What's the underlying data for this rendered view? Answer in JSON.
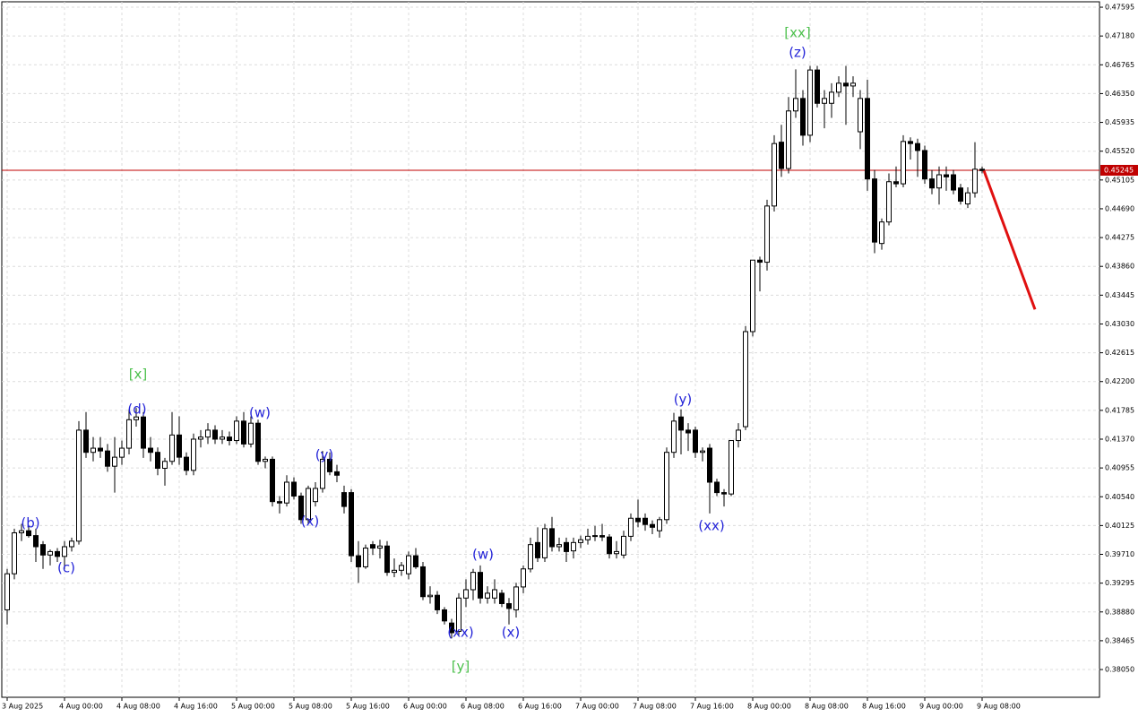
{
  "chart_data": {
    "type": "candlestick",
    "bull_color": "#ffffff",
    "bear_color": "#000000",
    "wick_color": "#000000",
    "grid": true,
    "ylim": [
      0.3765,
      0.47673
    ],
    "yticks": [
      0.47595,
      {
        "value": 0.4718,
        "label": "0.47180"
      },
      0.46765,
      {
        "value": 0.4635,
        "label": "0.46350"
      },
      0.45935,
      {
        "value": 0.4552,
        "label": "0.45520"
      },
      0.45105,
      {
        "value": 0.4469,
        "label": "0.44690"
      },
      0.44275,
      {
        "value": 0.4386,
        "label": "0.43860"
      },
      0.43445,
      {
        "value": 0.4303,
        "label": "0.43030"
      },
      0.42615,
      {
        "value": 0.422,
        "label": "0.42200"
      },
      0.41785,
      {
        "value": 0.4137,
        "label": "0.41370"
      },
      0.40955,
      {
        "value": 0.4054,
        "label": "0.40540"
      },
      0.40125,
      {
        "value": 0.3971,
        "label": "0.39710"
      },
      0.39295,
      {
        "value": 0.3888,
        "label": "0.38880"
      },
      0.38465,
      {
        "value": 0.3805,
        "label": "0.38050"
      }
    ],
    "xticks": [
      {
        "value": 0,
        "label": "3 Aug 2025"
      },
      {
        "value": 8,
        "label": "4 Aug 00:00"
      },
      {
        "value": 16,
        "label": "4 Aug 08:00"
      },
      {
        "value": 24,
        "label": "4 Aug 16:00"
      },
      {
        "value": 32,
        "label": "5 Aug 00:00"
      },
      {
        "value": 40,
        "label": "5 Aug 08:00"
      },
      {
        "value": 48,
        "label": "5 Aug 16:00"
      },
      {
        "value": 56,
        "label": "6 Aug 00:00"
      },
      {
        "value": 64,
        "label": "6 Aug 08:00"
      },
      {
        "value": 72,
        "label": "6 Aug 16:00"
      },
      {
        "value": 80,
        "label": "7 Aug 00:00"
      },
      {
        "value": 88,
        "label": "7 Aug 08:00"
      },
      {
        "value": 96,
        "label": "7 Aug 16:00"
      },
      {
        "value": 104,
        "label": "8 Aug 00:00"
      },
      {
        "value": 112,
        "label": "8 Aug 08:00"
      },
      {
        "value": 120,
        "label": "8 Aug 16:00"
      },
      {
        "value": 128,
        "label": "9 Aug 00:00"
      },
      {
        "value": 136,
        "label": "9 Aug 08:00"
      }
    ],
    "current_price": {
      "value": 0.45245,
      "color": "#c00000"
    },
    "forecast": {
      "values": [
        0.4524,
        0.4324
      ],
      "color": "#e01010"
    },
    "annotations": [
      {
        "text": "(b)",
        "color": "#2424d8"
      },
      {
        "text": "(c)",
        "color": "#2424d8"
      },
      {
        "text": "[x]",
        "color": "#4cc04c"
      },
      {
        "text": "(d)",
        "color": "#2424d8"
      },
      {
        "text": "(w)",
        "color": "#2424d8"
      },
      {
        "text": "(y)",
        "color": "#2424d8"
      },
      {
        "text": "(x)",
        "color": "#2424d8"
      },
      {
        "text": "(xx)",
        "color": "#2424d8"
      },
      {
        "text": "(x)",
        "color": "#2424d8"
      },
      {
        "text": "(w)",
        "color": "#2424d8"
      },
      {
        "text": "[y]",
        "color": "#4cc04c"
      },
      {
        "text": "(y)",
        "color": "#2424d8"
      },
      {
        "text": "(xx)",
        "color": "#2424d8"
      },
      {
        "text": "[xx]",
        "color": "#4cc04c"
      },
      {
        "text": "(z)",
        "color": "#2424d8"
      }
    ],
    "candles": [
      [
        0.3891,
        0.395,
        0.387,
        0.3943
      ],
      [
        0.3943,
        0.4008,
        0.3935,
        0.4002
      ],
      [
        0.4002,
        0.4015,
        0.399,
        0.4005
      ],
      [
        0.4005,
        0.4012,
        0.3995,
        0.3998
      ],
      [
        0.3998,
        0.4008,
        0.396,
        0.3982
      ],
      [
        0.3985,
        0.399,
        0.395,
        0.397
      ],
      [
        0.397,
        0.3978,
        0.3955,
        0.3975
      ],
      [
        0.3975,
        0.398,
        0.396,
        0.3968
      ],
      [
        0.3968,
        0.399,
        0.395,
        0.3982
      ],
      [
        0.3982,
        0.3995,
        0.3975,
        0.399
      ],
      [
        0.399,
        0.4163,
        0.3985,
        0.415
      ],
      [
        0.415,
        0.4176,
        0.411,
        0.4118
      ],
      [
        0.4118,
        0.414,
        0.4105,
        0.4124
      ],
      [
        0.4124,
        0.414,
        0.411,
        0.412
      ],
      [
        0.412,
        0.413,
        0.409,
        0.4098
      ],
      [
        0.4098,
        0.414,
        0.406,
        0.4111
      ],
      [
        0.4111,
        0.4135,
        0.41,
        0.4124
      ],
      [
        0.4124,
        0.418,
        0.4115,
        0.4165
      ],
      [
        0.4165,
        0.4182,
        0.4155,
        0.4169
      ],
      [
        0.4169,
        0.4176,
        0.411,
        0.4124
      ],
      [
        0.4124,
        0.414,
        0.4105,
        0.4118
      ],
      [
        0.4118,
        0.4125,
        0.4085,
        0.4095
      ],
      [
        0.4095,
        0.411,
        0.407,
        0.4105
      ],
      [
        0.4105,
        0.4176,
        0.41,
        0.4143
      ],
      [
        0.4143,
        0.417,
        0.41,
        0.4111
      ],
      [
        0.4111,
        0.4118,
        0.4085,
        0.4092
      ],
      [
        0.4092,
        0.4145,
        0.4085,
        0.4137
      ],
      [
        0.4137,
        0.415,
        0.4125,
        0.414
      ],
      [
        0.414,
        0.416,
        0.413,
        0.415
      ],
      [
        0.415,
        0.4157,
        0.413,
        0.4137
      ],
      [
        0.4137,
        0.415,
        0.413,
        0.414
      ],
      [
        0.414,
        0.4148,
        0.4128,
        0.4135
      ],
      [
        0.4135,
        0.417,
        0.413,
        0.4163
      ],
      [
        0.4163,
        0.4176,
        0.4125,
        0.413
      ],
      [
        0.413,
        0.417,
        0.4125,
        0.416
      ],
      [
        0.416,
        0.4165,
        0.41,
        0.4105
      ],
      [
        0.4105,
        0.4112,
        0.4095,
        0.4108
      ],
      [
        0.4108,
        0.4112,
        0.404,
        0.4047
      ],
      [
        0.4047,
        0.4055,
        0.403,
        0.4045
      ],
      [
        0.4045,
        0.4085,
        0.404,
        0.4075
      ],
      [
        0.4075,
        0.4082,
        0.405,
        0.4055
      ],
      [
        0.4055,
        0.406,
        0.4015,
        0.4021
      ],
      [
        0.4021,
        0.407,
        0.4015,
        0.4066
      ],
      [
        0.4047,
        0.4075,
        0.404,
        0.4066
      ],
      [
        0.4066,
        0.412,
        0.406,
        0.4108
      ],
      [
        0.4108,
        0.4118,
        0.4085,
        0.409
      ],
      [
        0.409,
        0.41,
        0.4075,
        0.4085
      ],
      [
        0.406,
        0.407,
        0.403,
        0.404
      ],
      [
        0.406,
        0.4065,
        0.396,
        0.3969
      ],
      [
        0.3969,
        0.399,
        0.393,
        0.3953
      ],
      [
        0.3953,
        0.3985,
        0.395,
        0.398
      ],
      [
        0.3985,
        0.399,
        0.397,
        0.398
      ],
      [
        0.398,
        0.3992,
        0.3965,
        0.3983
      ],
      [
        0.3983,
        0.399,
        0.394,
        0.3945
      ],
      [
        0.3945,
        0.3965,
        0.3938,
        0.3948
      ],
      [
        0.3948,
        0.396,
        0.394,
        0.3955
      ],
      [
        0.3943,
        0.3975,
        0.3935,
        0.3969
      ],
      [
        0.3969,
        0.398,
        0.395,
        0.3953
      ],
      [
        0.3953,
        0.396,
        0.3905,
        0.391
      ],
      [
        0.391,
        0.3925,
        0.39,
        0.3912
      ],
      [
        0.3912,
        0.3918,
        0.3885,
        0.3891
      ],
      [
        0.3891,
        0.3895,
        0.387,
        0.3875
      ],
      [
        0.3872,
        0.3878,
        0.385,
        0.3858
      ],
      [
        0.386,
        0.3915,
        0.3855,
        0.3908
      ],
      [
        0.3908,
        0.3935,
        0.3895,
        0.392
      ],
      [
        0.392,
        0.395,
        0.3905,
        0.3945
      ],
      [
        0.3945,
        0.3955,
        0.39,
        0.3908
      ],
      [
        0.3908,
        0.3925,
        0.39,
        0.3915
      ],
      [
        0.3908,
        0.3935,
        0.39,
        0.392
      ],
      [
        0.3915,
        0.392,
        0.3895,
        0.39
      ],
      [
        0.39,
        0.3908,
        0.387,
        0.3893
      ],
      [
        0.3891,
        0.393,
        0.388,
        0.3924
      ],
      [
        0.3924,
        0.3955,
        0.3915,
        0.395
      ],
      [
        0.395,
        0.3995,
        0.3945,
        0.3985
      ],
      [
        0.3988,
        0.401,
        0.396,
        0.3966
      ],
      [
        0.3966,
        0.4015,
        0.396,
        0.4008
      ],
      [
        0.4008,
        0.4025,
        0.3975,
        0.3982
      ],
      [
        0.3982,
        0.3995,
        0.3975,
        0.3985
      ],
      [
        0.3988,
        0.3995,
        0.396,
        0.3975
      ],
      [
        0.3976,
        0.3995,
        0.3965,
        0.3988
      ],
      [
        0.3988,
        0.3998,
        0.398,
        0.3992
      ],
      [
        0.3992,
        0.4008,
        0.3985,
        0.3997
      ],
      [
        0.3997,
        0.4012,
        0.399,
        0.3998
      ],
      [
        0.3998,
        0.4015,
        0.399,
        0.3996
      ],
      [
        0.3996,
        0.4,
        0.3965,
        0.3972
      ],
      [
        0.3972,
        0.399,
        0.3965,
        0.3975
      ],
      [
        0.397,
        0.4005,
        0.3965,
        0.3997
      ],
      [
        0.3997,
        0.403,
        0.399,
        0.4023
      ],
      [
        0.4023,
        0.405,
        0.401,
        0.4018
      ],
      [
        0.4023,
        0.403,
        0.4005,
        0.4014
      ],
      [
        0.4014,
        0.402,
        0.4,
        0.401
      ],
      [
        0.4005,
        0.4025,
        0.3995,
        0.4021
      ],
      [
        0.4021,
        0.4125,
        0.4015,
        0.4118
      ],
      [
        0.4118,
        0.4175,
        0.411,
        0.4163
      ],
      [
        0.4169,
        0.418,
        0.4115,
        0.415
      ],
      [
        0.415,
        0.416,
        0.412,
        0.4146
      ],
      [
        0.415,
        0.4155,
        0.411,
        0.4118
      ],
      [
        0.4118,
        0.4125,
        0.4105,
        0.412
      ],
      [
        0.4124,
        0.413,
        0.403,
        0.4075
      ],
      [
        0.4075,
        0.408,
        0.4055,
        0.406
      ],
      [
        0.406,
        0.4065,
        0.404,
        0.4058
      ],
      [
        0.4058,
        0.4135,
        0.4055,
        0.4135
      ],
      [
        0.4135,
        0.416,
        0.4125,
        0.415
      ],
      [
        0.4155,
        0.43,
        0.415,
        0.4292
      ],
      [
        0.4292,
        0.4395,
        0.4285,
        0.4395
      ],
      [
        0.4395,
        0.44,
        0.435,
        0.4392
      ],
      [
        0.4392,
        0.4482,
        0.438,
        0.4473
      ],
      [
        0.4473,
        0.4575,
        0.4465,
        0.4563
      ],
      [
        0.4565,
        0.459,
        0.4515,
        0.4527
      ],
      [
        0.4527,
        0.463,
        0.452,
        0.461
      ],
      [
        0.461,
        0.467,
        0.46,
        0.4628
      ],
      [
        0.4628,
        0.464,
        0.456,
        0.4575
      ],
      [
        0.4575,
        0.4675,
        0.4565,
        0.4669
      ],
      [
        0.4669,
        0.4675,
        0.4615,
        0.4621
      ],
      [
        0.4621,
        0.464,
        0.4585,
        0.4628
      ],
      [
        0.4621,
        0.465,
        0.46,
        0.4637
      ],
      [
        0.4637,
        0.466,
        0.463,
        0.465
      ],
      [
        0.465,
        0.4675,
        0.459,
        0.4646
      ],
      [
        0.4646,
        0.466,
        0.463,
        0.465
      ],
      [
        0.458,
        0.464,
        0.4555,
        0.4628
      ],
      [
        0.4628,
        0.4655,
        0.4495,
        0.4512
      ],
      [
        0.4512,
        0.4525,
        0.4405,
        0.4421
      ],
      [
        0.4419,
        0.4455,
        0.441,
        0.445
      ],
      [
        0.445,
        0.452,
        0.4445,
        0.4508
      ],
      [
        0.4508,
        0.453,
        0.45,
        0.4505
      ],
      [
        0.4505,
        0.4575,
        0.45,
        0.4566
      ],
      [
        0.4566,
        0.4572,
        0.454,
        0.4563
      ],
      [
        0.4563,
        0.457,
        0.4515,
        0.4553
      ],
      [
        0.4553,
        0.456,
        0.4505,
        0.4512
      ],
      [
        0.4512,
        0.4525,
        0.449,
        0.4499
      ],
      [
        0.4499,
        0.453,
        0.4475,
        0.4518
      ],
      [
        0.4518,
        0.453,
        0.4495,
        0.4515
      ],
      [
        0.4518,
        0.4525,
        0.449,
        0.4496
      ],
      [
        0.4499,
        0.4505,
        0.4475,
        0.448
      ],
      [
        0.4476,
        0.45,
        0.447,
        0.4492
      ],
      [
        0.4492,
        0.4565,
        0.4485,
        0.4526
      ],
      [
        0.4526,
        0.453,
        0.452,
        0.4524
      ]
    ]
  }
}
